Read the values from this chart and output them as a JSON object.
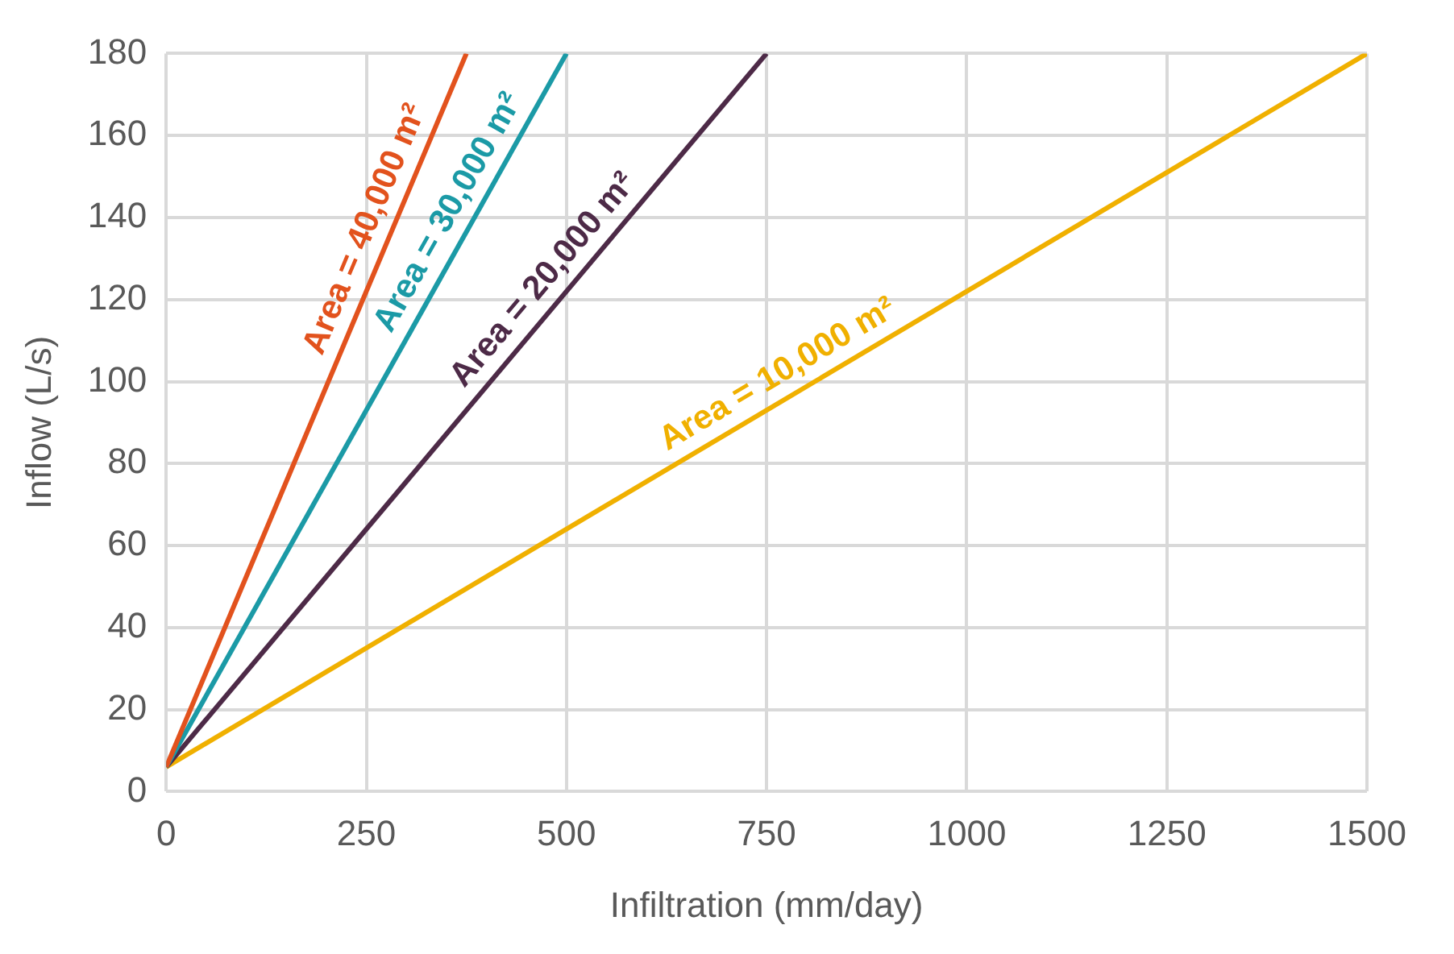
{
  "chart_data": {
    "type": "line",
    "xlabel": "Infiltration (mm/day)",
    "ylabel": "Inflow (L/s)",
    "xlim": [
      0,
      1500
    ],
    "xticks": [
      0,
      250,
      500,
      750,
      1000,
      1250,
      1500
    ],
    "ylim": [
      0,
      180
    ],
    "yticks": [
      0,
      20,
      40,
      60,
      80,
      100,
      120,
      140,
      160,
      180
    ],
    "grid": true,
    "legend": false,
    "marker": "none",
    "line_style": "solid",
    "series": [
      {
        "name": "Area = 40,000 m²",
        "color": "#e2521d",
        "x": [
          0,
          375
        ],
        "values": [
          6,
          180
        ]
      },
      {
        "name": "Area = 30,000 m²",
        "color": "#1b9aa6",
        "x": [
          0,
          500
        ],
        "values": [
          6,
          180
        ]
      },
      {
        "name": "Area = 20,000 m²",
        "color": "#4d2a47",
        "x": [
          0,
          750
        ],
        "values": [
          6,
          180
        ]
      },
      {
        "name": "Area = 10,000 m²",
        "color": "#f0b000",
        "x": [
          0,
          1500
        ],
        "values": [
          6,
          180
        ]
      }
    ]
  }
}
